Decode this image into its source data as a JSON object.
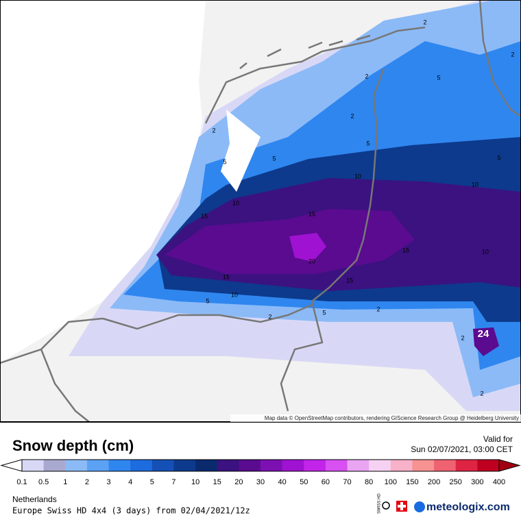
{
  "map": {
    "attribution": "Map data © OpenStreetMap contributors, rendering GIScience Research Group @ Heidelberg University",
    "contour_labels": [
      "2",
      "2",
      "2",
      "2",
      "5",
      "5",
      "5",
      "5",
      "5",
      "10",
      "10",
      "10",
      "10",
      "10",
      "15",
      "15",
      "15",
      "15",
      "15",
      "20",
      "2",
      "2",
      "2",
      "2",
      "2",
      "5",
      "5",
      "24"
    ]
  },
  "header": {
    "title": "Snow depth (cm)",
    "valid_label": "Valid for",
    "valid_time": "Sun 02/07/2021, 03:00 CET"
  },
  "legend": {
    "labels": [
      "0.1",
      "0.5",
      "1",
      "2",
      "3",
      "4",
      "5",
      "7",
      "10",
      "15",
      "20",
      "30",
      "40",
      "50",
      "60",
      "70",
      "80",
      "100",
      "150",
      "200",
      "250",
      "300",
      "400"
    ],
    "colors": [
      "#d8d8f6",
      "#a9a9cf",
      "#8cbaf7",
      "#5ca2f4",
      "#2f86ef",
      "#1c6bdf",
      "#1550b6",
      "#0d3a8c",
      "#0b2a6e",
      "#3b1280",
      "#5a0b90",
      "#7c10b2",
      "#a012d2",
      "#c224ea",
      "#d850f2",
      "#e9a4f2",
      "#f6d2f2",
      "#f7b1c9",
      "#f79292",
      "#ef6272",
      "#df2443",
      "#c00021",
      "#a00012",
      "#800012"
    ]
  },
  "footer": {
    "region": "Netherlands",
    "model": "Europe Swiss HD 4x4 (3 days) from 02/04/2021/12z",
    "swiss_hd": "SWISS HD",
    "brand": "meteologix.com"
  }
}
